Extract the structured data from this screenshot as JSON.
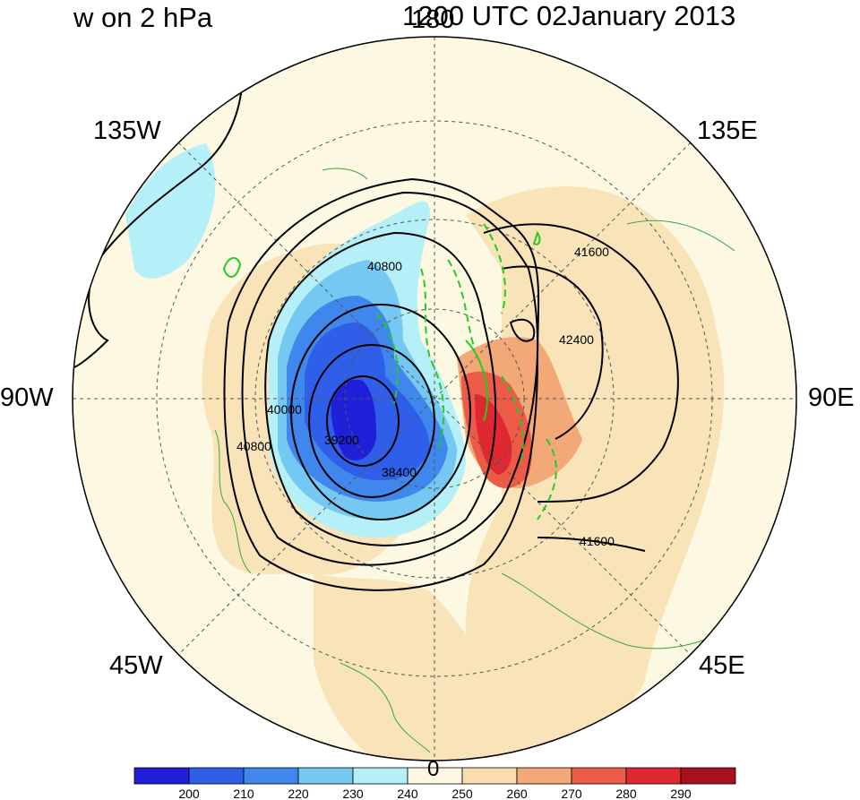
{
  "title_left": "w on 2 hPa",
  "title_right": "1200 UTC 02January 2013",
  "longitude_labels": {
    "top": "180",
    "top_right": "135E",
    "right": "90E",
    "bottom_right": "45E",
    "bottom": "0",
    "bottom_left": "45W",
    "left": "90W",
    "top_left": "135W"
  },
  "contour_labels": [
    "40800",
    "41600",
    "42400",
    "40000",
    "39200",
    "38400",
    "40800",
    "41600"
  ],
  "colorbar": {
    "ticks": [
      "200",
      "210",
      "220",
      "230",
      "240",
      "250",
      "260",
      "270",
      "280",
      "290"
    ],
    "colors": [
      "#2020d8",
      "#2f5fe8",
      "#3f87ec",
      "#74c8f2",
      "#b5f0f8",
      "#fdf8e1",
      "#f8deae",
      "#f3a878",
      "#ec5a48",
      "#e02830",
      "#a8101e"
    ]
  }
}
